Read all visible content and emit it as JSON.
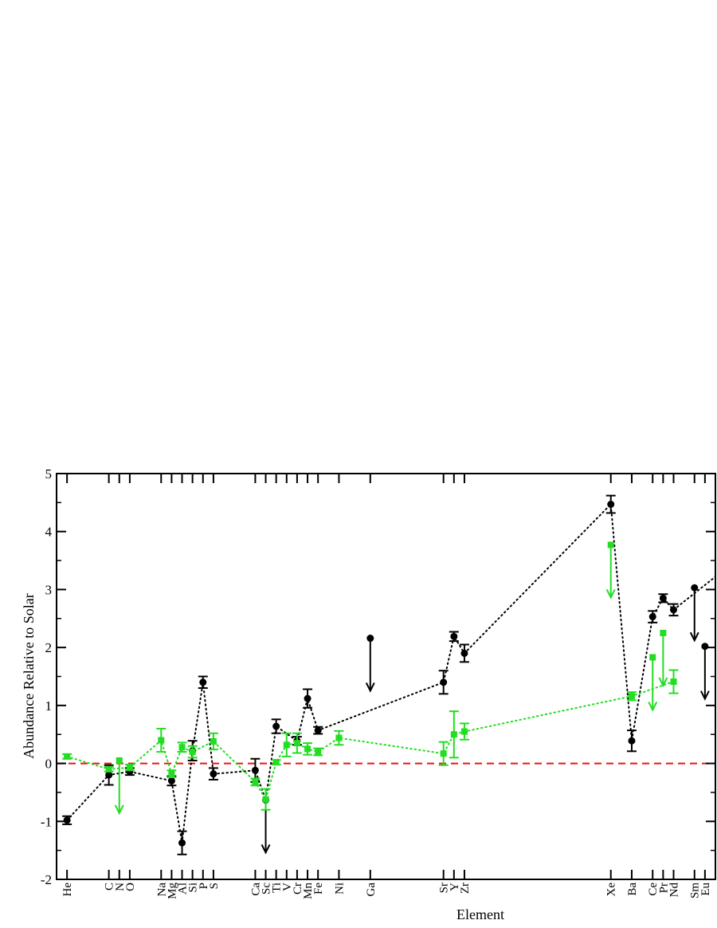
{
  "chart_data": {
    "type": "scatter",
    "title": "",
    "xlabel": "Element",
    "ylabel": "Abundance Relative to Solar",
    "ylim": [
      -2,
      5
    ],
    "yticks": [
      "-2",
      "-1",
      "0",
      "1",
      "2",
      "3",
      "4",
      "5"
    ],
    "xlim": [
      1,
      64
    ],
    "grid": false,
    "legend": "none",
    "reference_line": {
      "y": 0,
      "color": "#ee1111",
      "style": "dashed"
    },
    "elements": [
      {
        "symbol": "He",
        "z": 2
      },
      {
        "symbol": "C",
        "z": 6
      },
      {
        "symbol": "N",
        "z": 7
      },
      {
        "symbol": "O",
        "z": 8
      },
      {
        "symbol": "Na",
        "z": 11
      },
      {
        "symbol": "Mg",
        "z": 12
      },
      {
        "symbol": "Al",
        "z": 13
      },
      {
        "symbol": "Si",
        "z": 14
      },
      {
        "symbol": "P",
        "z": 15
      },
      {
        "symbol": "S",
        "z": 16
      },
      {
        "symbol": "Ca",
        "z": 20
      },
      {
        "symbol": "Sc",
        "z": 21
      },
      {
        "symbol": "Ti",
        "z": 22
      },
      {
        "symbol": "V",
        "z": 23
      },
      {
        "symbol": "Cr",
        "z": 24
      },
      {
        "symbol": "Mn",
        "z": 25
      },
      {
        "symbol": "Fe",
        "z": 26
      },
      {
        "symbol": "Ni",
        "z": 28
      },
      {
        "symbol": "Ga",
        "z": 31
      },
      {
        "symbol": "Sr",
        "z": 38
      },
      {
        "symbol": "Y",
        "z": 39
      },
      {
        "symbol": "Zr",
        "z": 40
      },
      {
        "symbol": "Xe",
        "z": 54
      },
      {
        "symbol": "Ba",
        "z": 56
      },
      {
        "symbol": "Ce",
        "z": 58
      },
      {
        "symbol": "Pr",
        "z": 59
      },
      {
        "symbol": "Nd",
        "z": 60
      },
      {
        "symbol": "Sm",
        "z": 62
      },
      {
        "symbol": "Eu",
        "z": 63
      }
    ],
    "series": [
      {
        "color": "#000000",
        "marker": "circle",
        "points": [
          {
            "z": 2,
            "y": -0.98,
            "err": 0.07
          },
          {
            "z": 6,
            "y": -0.2,
            "err": 0.17
          },
          {
            "z": 8,
            "y": -0.14,
            "err": 0.06
          },
          {
            "z": 12,
            "y": -0.3,
            "err": 0.08
          },
          {
            "z": 13,
            "y": -1.37,
            "err": 0.2
          },
          {
            "z": 14,
            "y": 0.22,
            "err": 0.17
          },
          {
            "z": 15,
            "y": 1.4,
            "err": 0.1
          },
          {
            "z": 16,
            "y": -0.18,
            "err": 0.1
          },
          {
            "z": 20,
            "y": -0.12,
            "err": 0.2
          },
          {
            "z": 21,
            "y": -0.63,
            "upper_limit": true
          },
          {
            "z": 22,
            "y": 0.64,
            "err": 0.12
          },
          {
            "z": 24,
            "y": 0.39,
            "err": 0.07
          },
          {
            "z": 25,
            "y": 1.12,
            "err": 0.16
          },
          {
            "z": 26,
            "y": 0.57,
            "err": 0.06
          },
          {
            "z": 31,
            "y": 2.16,
            "upper_limit": true
          },
          {
            "z": 38,
            "y": 1.4,
            "err": 0.2
          },
          {
            "z": 39,
            "y": 2.19,
            "err": 0.08
          },
          {
            "z": 40,
            "y": 1.9,
            "err": 0.15
          },
          {
            "z": 54,
            "y": 4.47,
            "err": 0.15
          },
          {
            "z": 56,
            "y": 0.39,
            "err": 0.18
          },
          {
            "z": 58,
            "y": 2.53,
            "err": 0.1
          },
          {
            "z": 59,
            "y": 2.85,
            "err": 0.07
          },
          {
            "z": 60,
            "y": 2.65,
            "err": 0.1
          },
          {
            "z": 62,
            "y": 3.03,
            "upper_limit": true
          },
          {
            "z": 63,
            "y": 2.02,
            "upper_limit": true
          }
        ],
        "trend": [
          [
            2,
            -0.98
          ],
          [
            6,
            -0.2
          ],
          [
            8,
            -0.14
          ],
          [
            12,
            -0.3
          ],
          [
            13,
            -1.37
          ],
          [
            14,
            0.22
          ],
          [
            15,
            1.4
          ],
          [
            16,
            -0.18
          ],
          [
            20,
            -0.12
          ],
          [
            21,
            -0.63
          ],
          [
            22,
            0.64
          ],
          [
            24,
            0.39
          ],
          [
            25,
            1.12
          ],
          [
            26,
            0.57
          ],
          [
            38,
            1.4
          ],
          [
            39,
            2.19
          ],
          [
            40,
            1.9
          ],
          [
            54,
            4.47
          ],
          [
            56,
            0.39
          ],
          [
            58,
            2.53
          ],
          [
            59,
            2.85
          ],
          [
            60,
            2.65
          ],
          [
            64,
            3.22
          ]
        ]
      },
      {
        "color": "#22dd22",
        "marker": "square",
        "points": [
          {
            "z": 2,
            "y": 0.12,
            "err": 0.04
          },
          {
            "z": 6,
            "y": -0.1,
            "err": 0.04
          },
          {
            "z": 7,
            "y": 0.05,
            "upper_limit": true
          },
          {
            "z": 8,
            "y": -0.07,
            "err": 0.05
          },
          {
            "z": 11,
            "y": 0.4,
            "err": 0.2
          },
          {
            "z": 12,
            "y": -0.18,
            "err": 0.06
          },
          {
            "z": 13,
            "y": 0.28,
            "err": 0.08
          },
          {
            "z": 14,
            "y": 0.2,
            "err": 0.1
          },
          {
            "z": 16,
            "y": 0.38,
            "err": 0.14
          },
          {
            "z": 20,
            "y": -0.32,
            "err": 0.06
          },
          {
            "z": 21,
            "y": -0.62,
            "err": 0.18
          },
          {
            "z": 22,
            "y": 0.02,
            "err": 0.04
          },
          {
            "z": 23,
            "y": 0.32,
            "err": 0.2
          },
          {
            "z": 24,
            "y": 0.35,
            "err": 0.17
          },
          {
            "z": 25,
            "y": 0.25,
            "err": 0.1
          },
          {
            "z": 26,
            "y": 0.2,
            "err": 0.06
          },
          {
            "z": 28,
            "y": 0.44,
            "err": 0.12
          },
          {
            "z": 38,
            "y": 0.17,
            "err": 0.2
          },
          {
            "z": 39,
            "y": 0.5,
            "err": 0.4
          },
          {
            "z": 40,
            "y": 0.55,
            "err": 0.14
          },
          {
            "z": 54,
            "y": 3.77,
            "upper_limit": true
          },
          {
            "z": 56,
            "y": 1.16,
            "err": 0.07
          },
          {
            "z": 58,
            "y": 1.83,
            "upper_limit": true
          },
          {
            "z": 59,
            "y": 2.25,
            "upper_limit": true
          },
          {
            "z": 60,
            "y": 1.41,
            "err": 0.2
          }
        ],
        "trend": [
          [
            2,
            0.12
          ],
          [
            6,
            -0.1
          ],
          [
            8,
            -0.07
          ],
          [
            11,
            0.4
          ],
          [
            12,
            -0.18
          ],
          [
            13,
            0.28
          ],
          [
            14,
            0.2
          ],
          [
            16,
            0.38
          ],
          [
            20,
            -0.32
          ],
          [
            21,
            -0.62
          ],
          [
            22,
            0.02
          ],
          [
            23,
            0.32
          ],
          [
            24,
            0.35
          ],
          [
            25,
            0.25
          ],
          [
            26,
            0.2
          ],
          [
            28,
            0.44
          ],
          [
            38,
            0.17
          ],
          [
            39,
            0.5
          ],
          [
            40,
            0.55
          ],
          [
            56,
            1.16
          ],
          [
            60,
            1.41
          ]
        ]
      }
    ]
  }
}
